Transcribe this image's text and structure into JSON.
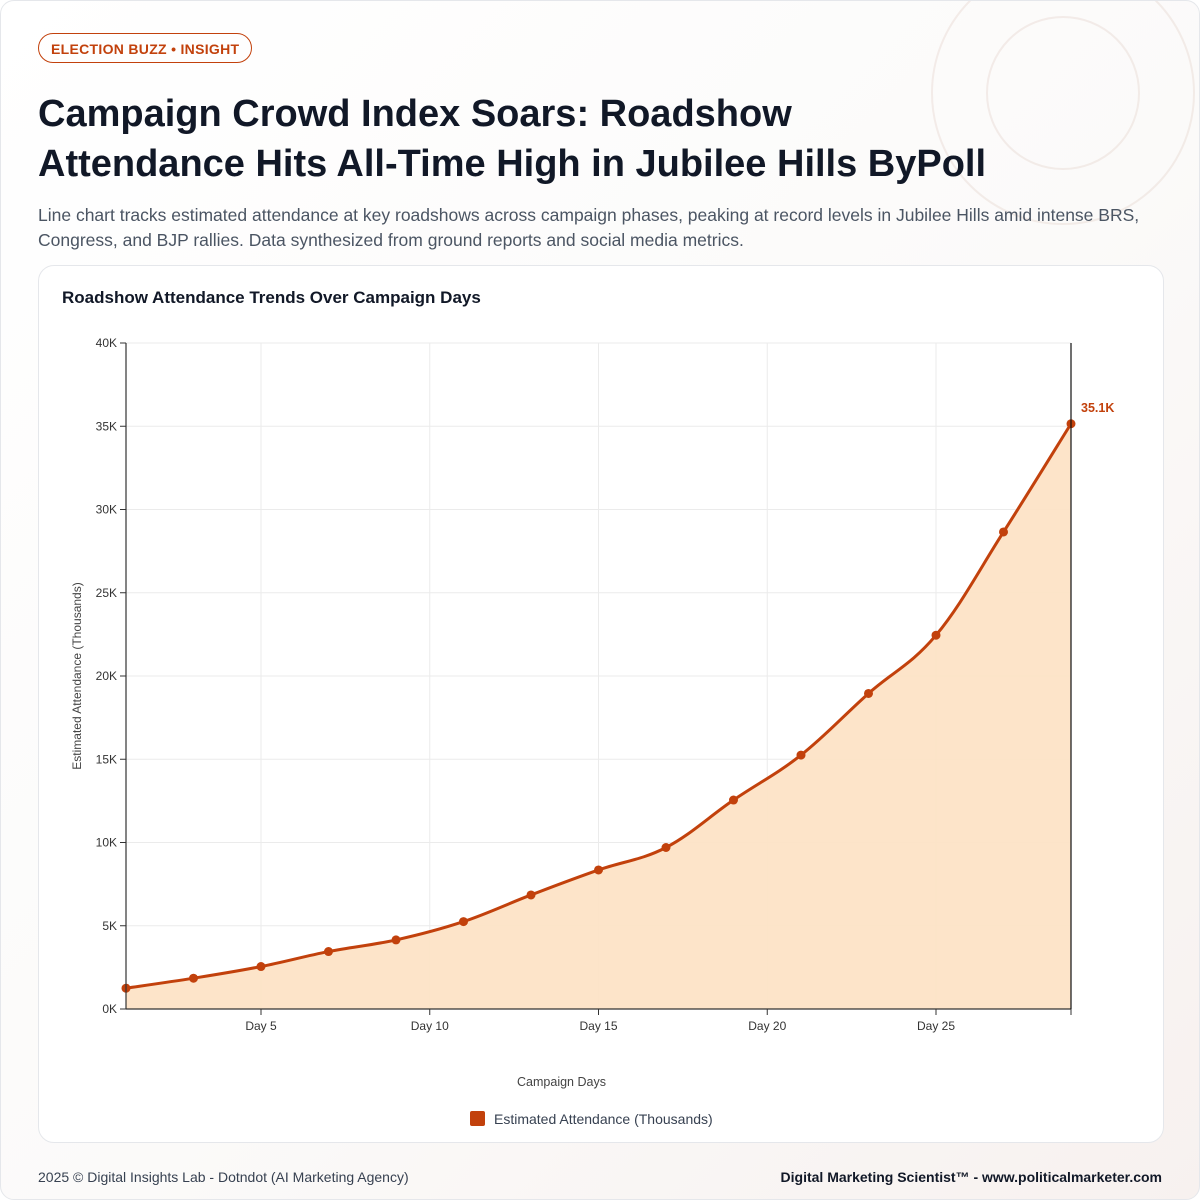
{
  "badge": "ELECTION BUZZ • INSIGHT",
  "title_line1": "Campaign Crowd Index Soars: Roadshow",
  "title_line2": "Attendance Hits All-Time High in Jubilee Hills ByPoll",
  "subtitle": "Line chart tracks estimated attendance at key roadshows across campaign phases, peaking at record levels in Jubilee Hills amid intense BRS, Congress, and BJP rallies. Data synthesized from ground reports and social media metrics.",
  "chart_title": "Roadshow Attendance Trends Over Campaign Days",
  "footer_left": "2025 © Digital Insights Lab - Dotndot (AI Marketing Agency)",
  "footer_right": "Digital Marketing Scientist™ - www.politicalmarketer.com",
  "colors": {
    "line": "#c2410c",
    "area": "#fde3c6",
    "badge": "#c2410c"
  },
  "chart_data": {
    "type": "area",
    "title": "Roadshow Attendance Trends Over Campaign Days",
    "xlabel": "Campaign Days",
    "ylabel": "Estimated Attendance (Thousands)",
    "xlim": [
      1,
      29
    ],
    "ylim": [
      0,
      40000
    ],
    "x_ticks": [
      5,
      10,
      15,
      20,
      25
    ],
    "x_tick_labels": [
      "Day 5",
      "Day 10",
      "Day 15",
      "Day 20",
      "Day 25"
    ],
    "y_ticks": [
      0,
      5000,
      10000,
      15000,
      20000,
      25000,
      30000,
      35000,
      40000
    ],
    "y_tick_labels": [
      "0K",
      "5K",
      "10K",
      "15K",
      "20K",
      "25K",
      "30K",
      "35K",
      "40K"
    ],
    "grid": true,
    "legend_position": "bottom",
    "series": [
      {
        "name": "Estimated Attendance (Thousands)",
        "x": [
          1,
          3,
          5,
          7,
          9,
          11,
          13,
          15,
          17,
          19,
          21,
          23,
          25,
          27,
          29
        ],
        "values": [
          1250,
          1850,
          2550,
          3450,
          4150,
          5250,
          6850,
          8350,
          9700,
          12550,
          15250,
          18950,
          22450,
          28650,
          35150
        ]
      }
    ],
    "annotations": [
      {
        "x": 29,
        "y": 35150,
        "text": "35.1K"
      }
    ]
  }
}
